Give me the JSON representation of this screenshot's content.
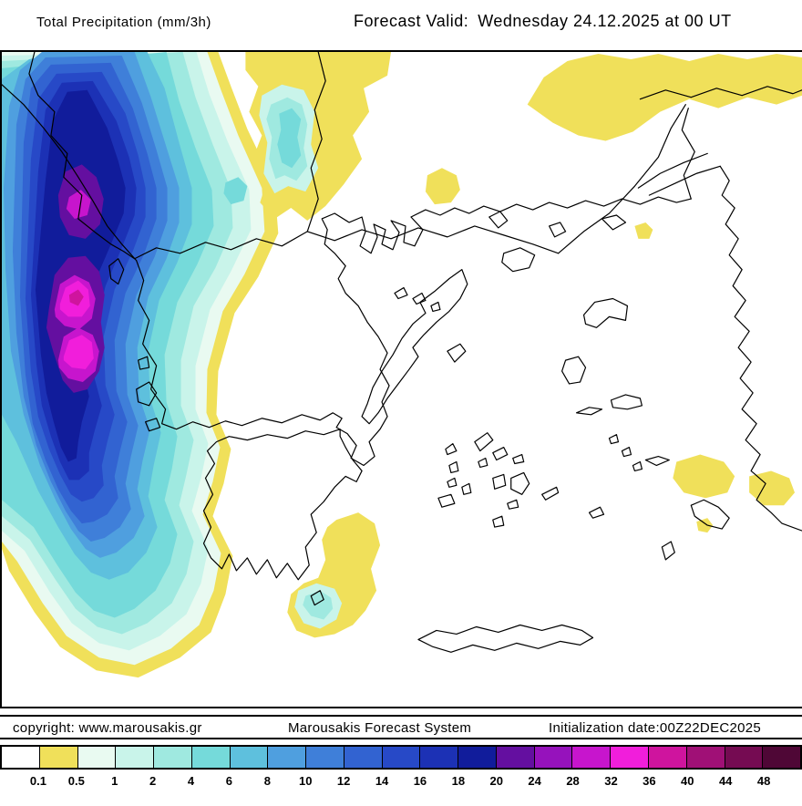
{
  "header": {
    "title": "Total Precipitation (mm/3h)",
    "forecast_label": "Forecast Valid:",
    "forecast_value": "Wednesday 24.12.2025 at 00 UT"
  },
  "footer": {
    "copyright": "copyright: www.marousakis.gr",
    "system_name": "Marousakis Forecast System",
    "init_date": "Initialization date:00Z22DEC2025"
  },
  "legend": {
    "unit": "mm/3h",
    "labels": [
      "0.1",
      "0.5",
      "1",
      "2",
      "4",
      "6",
      "8",
      "10",
      "12",
      "14",
      "16",
      "18",
      "20",
      "24",
      "28",
      "32",
      "36",
      "40",
      "44",
      "48"
    ],
    "colors": [
      "#ffffff",
      "#f0e05a",
      "#e9faf1",
      "#c9f4ea",
      "#9fe9e0",
      "#75dada",
      "#5ec0dd",
      "#4f9fdf",
      "#3f7fd9",
      "#3263d1",
      "#2749c7",
      "#1c31b5",
      "#111c9b",
      "#640fa0",
      "#9612bc",
      "#c715cd",
      "#f11edb",
      "#cf149e",
      "#a01076",
      "#750b52",
      "#4f0736"
    ]
  }
}
